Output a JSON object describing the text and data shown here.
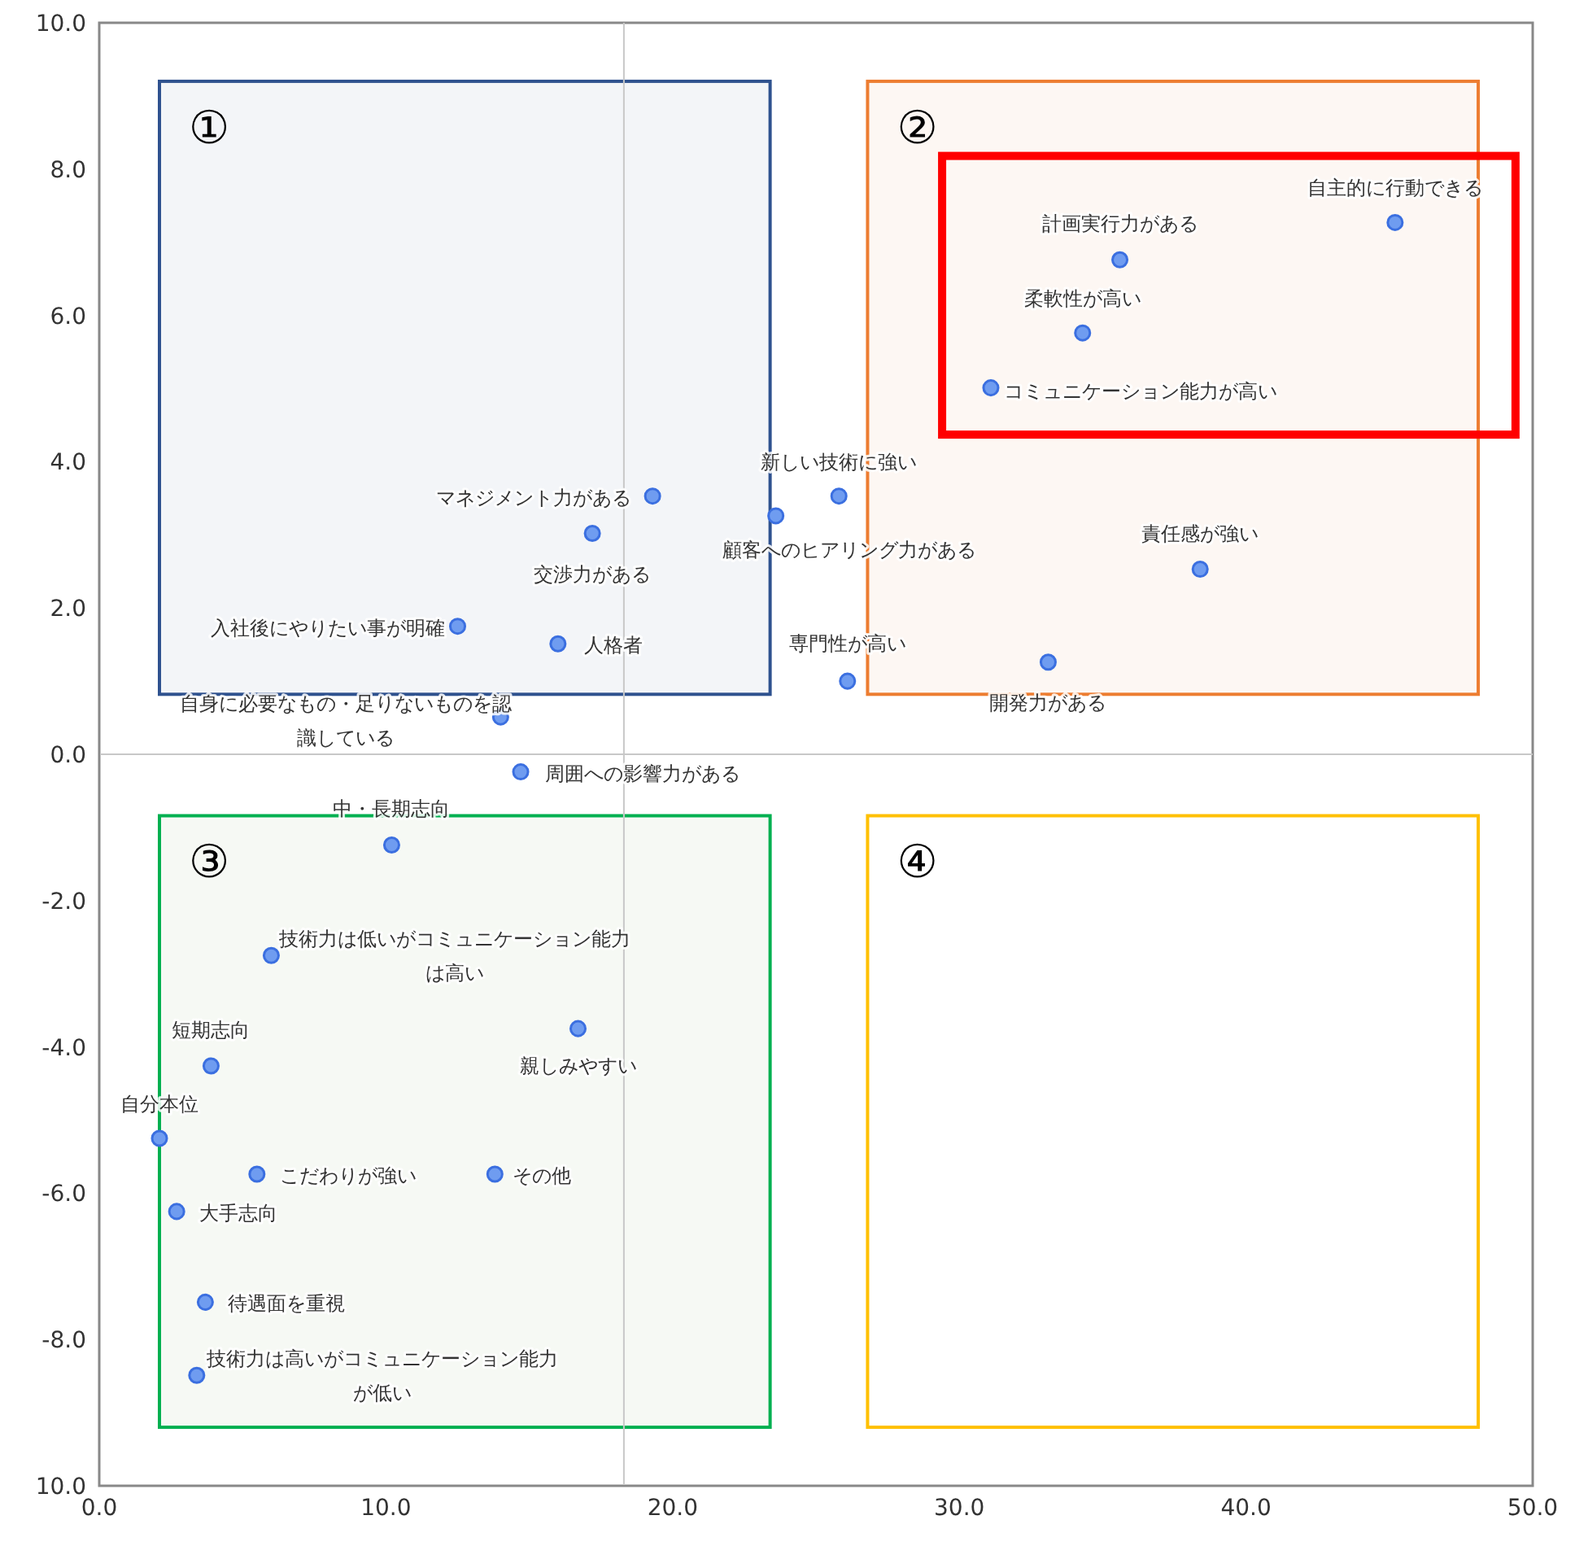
{
  "chart_data": {
    "type": "scatter",
    "x": [
      45.2,
      35.6,
      34.3,
      31.1,
      38.4,
      33.1,
      26.1,
      25.8,
      23.6,
      19.3,
      17.2,
      12.5,
      16.0,
      14.0,
      14.7,
      10.2,
      6.0,
      3.9,
      16.7,
      2.1,
      5.5,
      13.8,
      2.7,
      3.7,
      3.4
    ],
    "values": [
      7.27,
      6.76,
      5.76,
      5.01,
      2.53,
      1.26,
      1.0,
      3.53,
      3.26,
      3.53,
      3.02,
      1.75,
      1.51,
      0.51,
      -0.24,
      -1.24,
      -2.75,
      -4.26,
      -3.75,
      -5.25,
      -5.74,
      -5.74,
      -6.25,
      -7.49,
      -8.49
    ],
    "value_labels": [
      "自主的に行動できる",
      "計画実行力がある",
      "柔軟性が高い",
      "コミュニケーション能力が高い",
      "責任感が強い",
      "開発力がある",
      "専門性が高い",
      "新しい技術に強い",
      "顧客へのヒアリング力がある",
      "マネジメント力がある",
      "交渉力がある",
      "入社後にやりたい事が明確",
      "人格者",
      "自身に必要なもの・足りないものを認識している",
      "周囲への影響力がある",
      "中・長期志向",
      "技術力は低いがコミュニケーション能力は高い",
      "短期志向",
      "親しみやすい",
      "自分本位",
      "こだわりが強い",
      "その他",
      "大手志向",
      "待遇面を重視",
      "技術力は高いがコミュニケーション能力が低い"
    ],
    "color": "#6f9cf0",
    "marker": "circle",
    "xlim": [
      0,
      50
    ],
    "xticks": [
      {
        "value": 0,
        "label": "0.0"
      },
      {
        "value": 10,
        "label": "10.0"
      },
      {
        "value": 20,
        "label": "20.0"
      },
      {
        "value": 30,
        "label": "30.0"
      },
      {
        "value": 40,
        "label": "40.0"
      },
      {
        "value": 50,
        "label": "50.0"
      }
    ],
    "ylim": [
      -10,
      10
    ],
    "yticks": [
      {
        "value": -10,
        "label": "10.0"
      },
      {
        "value": -8,
        "label": "-8.0"
      },
      {
        "value": -6,
        "label": "-6.0"
      },
      {
        "value": -4,
        "label": "-4.0"
      },
      {
        "value": -2,
        "label": "-2.0"
      },
      {
        "value": 0,
        "label": "0.0"
      },
      {
        "value": 2,
        "label": "2.0"
      },
      {
        "value": 4,
        "label": "4.0"
      },
      {
        "value": 6,
        "label": "6.0"
      },
      {
        "value": 8,
        "label": "8.0"
      },
      {
        "value": 10,
        "label": "10.0"
      }
    ],
    "ref_lines": [
      {
        "axis": "x",
        "value": 18.3,
        "color": "#c8c8c8"
      },
      {
        "axis": "y",
        "value": 0,
        "color": "#c8c8c8"
      }
    ],
    "annotations": [
      "①",
      "②",
      "③",
      "④"
    ]
  }
}
